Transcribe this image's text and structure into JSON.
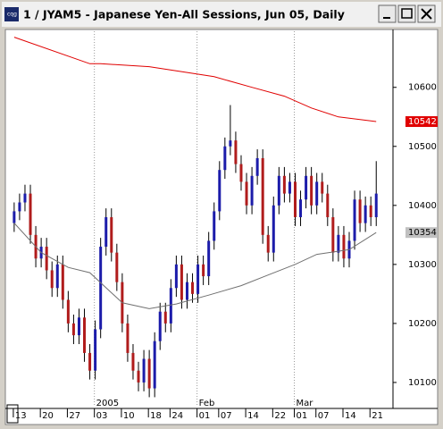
{
  "chart_data": {
    "type": "candlestick",
    "title": "1 / JYAM5 - Japanese Yen-All Sessions, Jun 05, Daily",
    "ylim": [
      10059,
      10695
    ],
    "yticks": [
      10100,
      10200,
      10300,
      10400,
      10500,
      10600
    ],
    "xlim": [
      -1.3,
      70.1
    ],
    "xticks": [
      {
        "value": 1,
        "label": "13"
      },
      {
        "value": 6,
        "label": "20"
      },
      {
        "value": 11,
        "label": "27"
      },
      {
        "value": 16,
        "label": "03"
      },
      {
        "value": 21,
        "label": "10"
      },
      {
        "value": 26,
        "label": "18"
      },
      {
        "value": 30,
        "label": "24"
      },
      {
        "value": 35,
        "label": "01"
      },
      {
        "value": 39,
        "label": "07"
      },
      {
        "value": 44,
        "label": "14"
      },
      {
        "value": 49,
        "label": "22"
      },
      {
        "value": 53,
        "label": "01"
      },
      {
        "value": 57,
        "label": "07"
      },
      {
        "value": 62,
        "label": "14"
      },
      {
        "value": 67,
        "label": "21"
      }
    ],
    "period_labels": [
      {
        "value": 16,
        "label": "2005"
      },
      {
        "value": 35,
        "label": "Feb"
      },
      {
        "value": 53,
        "label": "Mar"
      }
    ],
    "up_color": "#1c1caa",
    "down_color": "#b01c1c",
    "open": [
      10370,
      10390,
      10405,
      10420,
      10350,
      10310,
      10330,
      10290,
      10260,
      10300,
      10240,
      10200,
      10180,
      10210,
      10150,
      10120,
      10190,
      10330,
      10380,
      10320,
      10270,
      10200,
      10150,
      10120,
      10100,
      10140,
      10090,
      10170,
      10220,
      10200,
      10260,
      10300,
      10240,
      10270,
      10250,
      10300,
      10280,
      10340,
      10390,
      10460,
      10500,
      10510,
      10470,
      10440,
      10400,
      10450,
      10480,
      10350,
      10320,
      10400,
      10450,
      10420,
      10440,
      10380,
      10410,
      10450,
      10400,
      10440,
      10420,
      10380,
      10320,
      10350,
      10310,
      10340,
      10410,
      10370,
      10400,
      10380
    ],
    "high": [
      10405,
      10420,
      10435,
      10435,
      10365,
      10345,
      10345,
      10305,
      10315,
      10315,
      10255,
      10215,
      10225,
      10225,
      10165,
      10205,
      10345,
      10395,
      10395,
      10335,
      10285,
      10215,
      10165,
      10135,
      10155,
      10155,
      10185,
      10235,
      10235,
      10275,
      10315,
      10315,
      10285,
      10285,
      10315,
      10315,
      10355,
      10405,
      10475,
      10515,
      10570,
      10525,
      10485,
      10455,
      10465,
      10495,
      10495,
      10365,
      10415,
      10465,
      10465,
      10455,
      10455,
      10425,
      10465,
      10465,
      10455,
      10455,
      10435,
      10395,
      10365,
      10365,
      10355,
      10425,
      10425,
      10415,
      10415,
      10475
    ],
    "low": [
      10355,
      10375,
      10390,
      10335,
      10295,
      10295,
      10275,
      10245,
      10245,
      10225,
      10185,
      10165,
      10165,
      10135,
      10105,
      10105,
      10175,
      10315,
      10305,
      10255,
      10185,
      10135,
      10105,
      10085,
      10085,
      10075,
      10075,
      10155,
      10185,
      10185,
      10245,
      10225,
      10225,
      10235,
      10235,
      10265,
      10265,
      10325,
      10375,
      10445,
      10485,
      10455,
      10425,
      10385,
      10385,
      10435,
      10335,
      10305,
      10305,
      10385,
      10405,
      10405,
      10365,
      10365,
      10395,
      10385,
      10385,
      10405,
      10365,
      10305,
      10305,
      10295,
      10295,
      10325,
      10355,
      10355,
      10365,
      10365
    ],
    "close": [
      10390,
      10405,
      10420,
      10350,
      10310,
      10330,
      10290,
      10260,
      10300,
      10240,
      10200,
      10180,
      10210,
      10150,
      10120,
      10190,
      10330,
      10380,
      10320,
      10270,
      10200,
      10150,
      10120,
      10100,
      10140,
      10090,
      10170,
      10220,
      10200,
      10260,
      10300,
      10240,
      10270,
      10250,
      10300,
      10280,
      10340,
      10390,
      10460,
      10500,
      10510,
      10470,
      10440,
      10400,
      10450,
      10480,
      10350,
      10320,
      10400,
      10450,
      10420,
      10440,
      10380,
      10410,
      10450,
      10400,
      10440,
      10420,
      10380,
      10320,
      10350,
      10310,
      10340,
      10410,
      10370,
      10400,
      10380,
      10420
    ],
    "series": [
      {
        "color": "#e00000",
        "x": [
          0,
          14,
          16,
          25,
          30,
          37,
          44,
          50,
          55,
          60,
          67
        ],
        "values": [
          10685,
          10640,
          10640,
          10635,
          10628,
          10618,
          10600,
          10585,
          10565,
          10550,
          10542
        ]
      },
      {
        "color": "#707070",
        "x": [
          0,
          5,
          10,
          14,
          20,
          25,
          30,
          36,
          42,
          47,
          52,
          56,
          62,
          67
        ],
        "values": [
          10370,
          10320,
          10295,
          10286,
          10235,
          10225,
          10233,
          10248,
          10264,
          10282,
          10300,
          10317,
          10325,
          10354
        ]
      }
    ],
    "price_tags": [
      {
        "value": 10542,
        "label": "10542",
        "color": "#e00000"
      },
      {
        "value": 10354,
        "label": "10354",
        "color": "#c0c0c0"
      }
    ]
  }
}
